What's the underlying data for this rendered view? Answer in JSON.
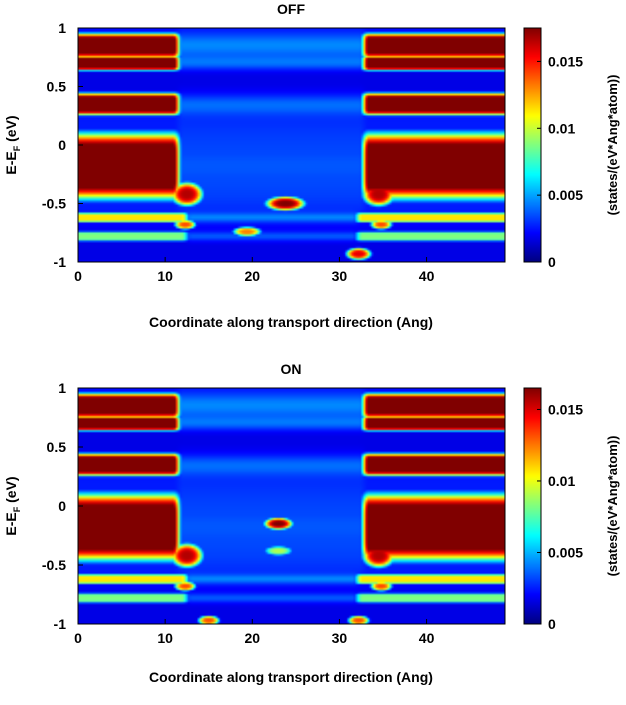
{
  "chart_data": [
    {
      "type": "heatmap",
      "title": "OFF",
      "xlabel": "Coordinate along transport direction (Ang)",
      "ylabel_main": "E-E",
      "ylabel_sub": "F",
      "ylabel_unit": " (eV)",
      "xlim": [
        0,
        49
      ],
      "ylim": [
        -1,
        1
      ],
      "xticks": [
        0,
        10,
        20,
        30,
        40
      ],
      "yticks": [
        1,
        0.5,
        0,
        -0.5,
        -1
      ],
      "ytick_labels": [
        "1",
        "0.5",
        "0",
        "-0.5",
        "-1"
      ],
      "colorbar": {
        "label": "(states/(eV*Ang*atom))",
        "range": [
          0,
          0.0175
        ],
        "ticks": [
          0,
          0.005,
          0.01,
          0.015
        ],
        "tick_labels": [
          "0",
          "0.005",
          "0.01",
          "0.015"
        ],
        "colormap": "jet"
      },
      "features": {
        "bands": [
          {
            "e_center": 0.85,
            "e_half": 0.1,
            "x_left_end": 11.5,
            "x_right_start": 32.8,
            "level": 1.0
          },
          {
            "e_center": 0.7,
            "e_half": 0.06,
            "x_left_end": 11.5,
            "x_right_start": 32.8,
            "level": 1.0
          },
          {
            "e_center": 0.35,
            "e_half": 0.09,
            "x_left_end": 11.5,
            "x_right_start": 32.8,
            "level": 1.0
          },
          {
            "e_center": -0.18,
            "e_half": 0.27,
            "x_left_end": 11.5,
            "x_right_start": 32.8,
            "level": 1.0
          },
          {
            "e_center": -0.62,
            "e_half": 0.04,
            "x_left_end": 12.5,
            "x_right_start": 32,
            "level": 0.55
          },
          {
            "e_center": -0.78,
            "e_half": 0.04,
            "x_left_end": 12.5,
            "x_right_start": 32,
            "level": 0.4
          }
        ],
        "spots": [
          {
            "x": 23.8,
            "e": -0.5,
            "rx": 2.2,
            "re": 0.06,
            "level": 1.0
          },
          {
            "x": 19.4,
            "e": -0.74,
            "rx": 1.6,
            "re": 0.04,
            "level": 0.75
          },
          {
            "x": 32.2,
            "e": -0.93,
            "rx": 1.4,
            "re": 0.05,
            "level": 0.9
          },
          {
            "x": 12.5,
            "e": -0.42,
            "rx": 1.8,
            "re": 0.1,
            "level": 0.95
          },
          {
            "x": 34.5,
            "e": -0.42,
            "rx": 1.8,
            "re": 0.1,
            "level": 0.95
          },
          {
            "x": 12.3,
            "e": -0.68,
            "rx": 1.2,
            "re": 0.04,
            "level": 0.8
          },
          {
            "x": 34.8,
            "e": -0.68,
            "rx": 1.2,
            "re": 0.04,
            "level": 0.8
          }
        ]
      }
    },
    {
      "type": "heatmap",
      "title": "ON",
      "xlabel": "Coordinate along transport direction (Ang)",
      "ylabel_main": "E-E",
      "ylabel_sub": "F",
      "ylabel_unit": " (eV)",
      "xlim": [
        0,
        49
      ],
      "ylim": [
        -1,
        1
      ],
      "xticks": [
        0,
        10,
        20,
        30,
        40
      ],
      "yticks": [
        1,
        0.5,
        0,
        -0.5,
        -1
      ],
      "ytick_labels": [
        "1",
        "0.5",
        "0",
        "-0.5",
        "-1"
      ],
      "colorbar": {
        "label": "(states/(eV*Ang*atom))",
        "range": [
          0,
          0.0165
        ],
        "ticks": [
          0,
          0.005,
          0.01,
          0.015
        ],
        "tick_labels": [
          "0",
          "0.005",
          "0.01",
          "0.015"
        ],
        "colormap": "jet"
      },
      "features": {
        "bands": [
          {
            "e_center": 0.85,
            "e_half": 0.1,
            "x_left_end": 11.5,
            "x_right_start": 32.8,
            "level": 1.0
          },
          {
            "e_center": 0.7,
            "e_half": 0.06,
            "x_left_end": 11.5,
            "x_right_start": 32.8,
            "level": 1.0
          },
          {
            "e_center": 0.35,
            "e_half": 0.09,
            "x_left_end": 11.5,
            "x_right_start": 32.8,
            "level": 1.0
          },
          {
            "e_center": -0.18,
            "e_half": 0.27,
            "x_left_end": 11.5,
            "x_right_start": 32.8,
            "level": 1.0
          },
          {
            "e_center": -0.62,
            "e_half": 0.04,
            "x_left_end": 12.5,
            "x_right_start": 32,
            "level": 0.55
          },
          {
            "e_center": -0.78,
            "e_half": 0.04,
            "x_left_end": 12.5,
            "x_right_start": 32,
            "level": 0.4
          }
        ],
        "spots": [
          {
            "x": 23,
            "e": -0.15,
            "rx": 1.6,
            "re": 0.05,
            "level": 1.0
          },
          {
            "x": 23,
            "e": -0.38,
            "rx": 1.6,
            "re": 0.04,
            "level": 0.55
          },
          {
            "x": 15,
            "e": -0.97,
            "rx": 1.2,
            "re": 0.04,
            "level": 0.8
          },
          {
            "x": 32.2,
            "e": -0.97,
            "rx": 1.2,
            "re": 0.04,
            "level": 0.8
          },
          {
            "x": 12.5,
            "e": -0.42,
            "rx": 1.8,
            "re": 0.1,
            "level": 0.95
          },
          {
            "x": 34.5,
            "e": -0.42,
            "rx": 1.8,
            "re": 0.1,
            "level": 0.95
          },
          {
            "x": 12.3,
            "e": -0.68,
            "rx": 1.2,
            "re": 0.04,
            "level": 0.8
          },
          {
            "x": 34.8,
            "e": -0.68,
            "rx": 1.2,
            "re": 0.04,
            "level": 0.8
          }
        ]
      }
    }
  ]
}
